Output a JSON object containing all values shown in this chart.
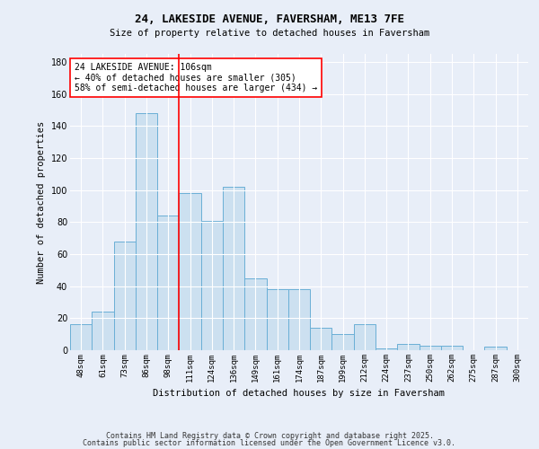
{
  "title_line1": "24, LAKESIDE AVENUE, FAVERSHAM, ME13 7FE",
  "title_line2": "Size of property relative to detached houses in Faversham",
  "xlabel": "Distribution of detached houses by size in Faversham",
  "ylabel": "Number of detached properties",
  "categories": [
    "48sqm",
    "61sqm",
    "73sqm",
    "86sqm",
    "98sqm",
    "111sqm",
    "124sqm",
    "136sqm",
    "149sqm",
    "161sqm",
    "174sqm",
    "187sqm",
    "199sqm",
    "212sqm",
    "224sqm",
    "237sqm",
    "250sqm",
    "262sqm",
    "275sqm",
    "287sqm",
    "300sqm"
  ],
  "values": [
    16,
    24,
    68,
    148,
    84,
    98,
    81,
    102,
    45,
    38,
    38,
    14,
    10,
    16,
    1,
    4,
    3,
    3,
    0,
    2,
    0
  ],
  "bar_color": "#cce0f0",
  "bar_edgecolor": "#6aafd6",
  "vline_index": 4.5,
  "vline_color": "red",
  "annotation_text": "24 LAKESIDE AVENUE: 106sqm\n← 40% of detached houses are smaller (305)\n58% of semi-detached houses are larger (434) →",
  "annotation_box_edgecolor": "red",
  "annotation_box_facecolor": "white",
  "ylim": [
    0,
    185
  ],
  "yticks": [
    0,
    20,
    40,
    60,
    80,
    100,
    120,
    140,
    160,
    180
  ],
  "background_color": "#e8eef8",
  "grid_color": "white",
  "footnote_line1": "Contains HM Land Registry data © Crown copyright and database right 2025.",
  "footnote_line2": "Contains public sector information licensed under the Open Government Licence v3.0."
}
